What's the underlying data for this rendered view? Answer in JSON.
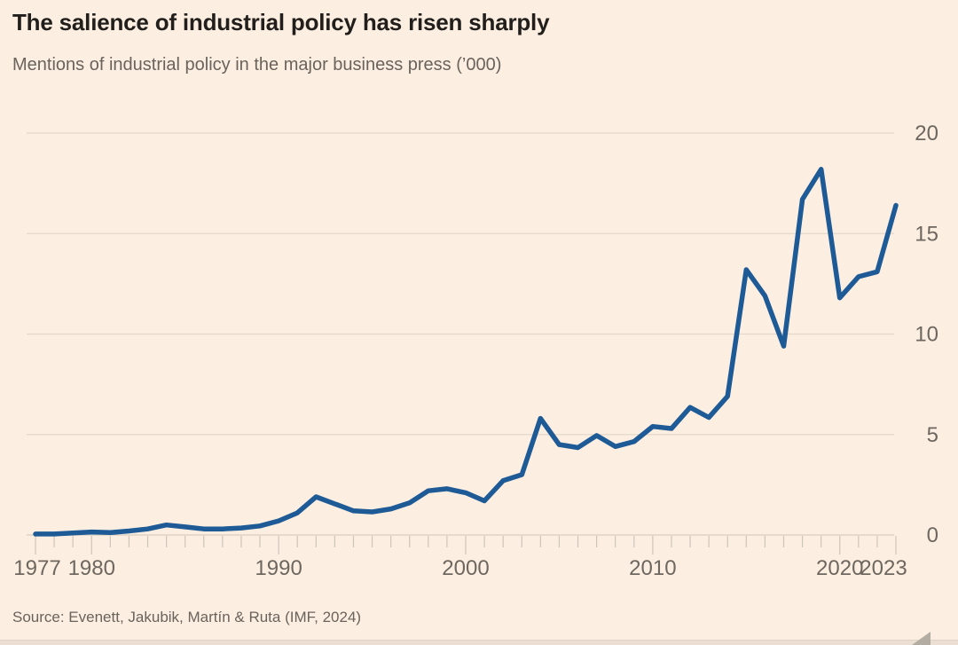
{
  "header": {
    "title": "The salience of industrial policy has risen sharply",
    "subtitle": "Mentions of industrial policy in the major business press (’000)"
  },
  "chart_data": {
    "type": "line",
    "title": "The salience of industrial policy has risen sharply",
    "subtitle": "Mentions of industrial policy in the major business press ('000)",
    "series_name": "Mentions of industrial policy ('000)",
    "x": [
      1977,
      1978,
      1979,
      1980,
      1981,
      1982,
      1983,
      1984,
      1985,
      1986,
      1987,
      1988,
      1989,
      1990,
      1991,
      1992,
      1993,
      1994,
      1995,
      1996,
      1997,
      1998,
      1999,
      2000,
      2001,
      2002,
      2003,
      2004,
      2005,
      2006,
      2007,
      2008,
      2009,
      2010,
      2011,
      2012,
      2013,
      2014,
      2015,
      2016,
      2017,
      2018,
      2019,
      2020,
      2021,
      2022,
      2023
    ],
    "values": [
      0.05,
      0.05,
      0.1,
      0.15,
      0.12,
      0.2,
      0.3,
      0.5,
      0.4,
      0.3,
      0.3,
      0.35,
      0.45,
      0.7,
      1.1,
      1.9,
      1.55,
      1.2,
      1.15,
      1.3,
      1.6,
      2.2,
      2.3,
      2.1,
      1.7,
      2.7,
      3.0,
      5.8,
      4.5,
      4.35,
      4.95,
      4.4,
      4.65,
      5.4,
      5.3,
      6.35,
      5.85,
      6.9,
      13.2,
      11.9,
      9.4,
      16.7,
      18.2,
      11.8,
      12.85,
      13.1,
      16.4
    ],
    "ylim": [
      0,
      20
    ],
    "yticks": [
      0,
      5,
      10,
      15,
      20
    ],
    "xtick_labels": [
      1977,
      1980,
      1990,
      2000,
      2010,
      2020,
      2023
    ],
    "xlabel": "",
    "ylabel": "",
    "grid": true,
    "legend": "none",
    "line_color": "#1d5a96",
    "background_color": "#fcefe2"
  },
  "footer": {
    "source": "Source: Evenett, Jakubik, Martín & Ruta (IMF, 2024)"
  }
}
